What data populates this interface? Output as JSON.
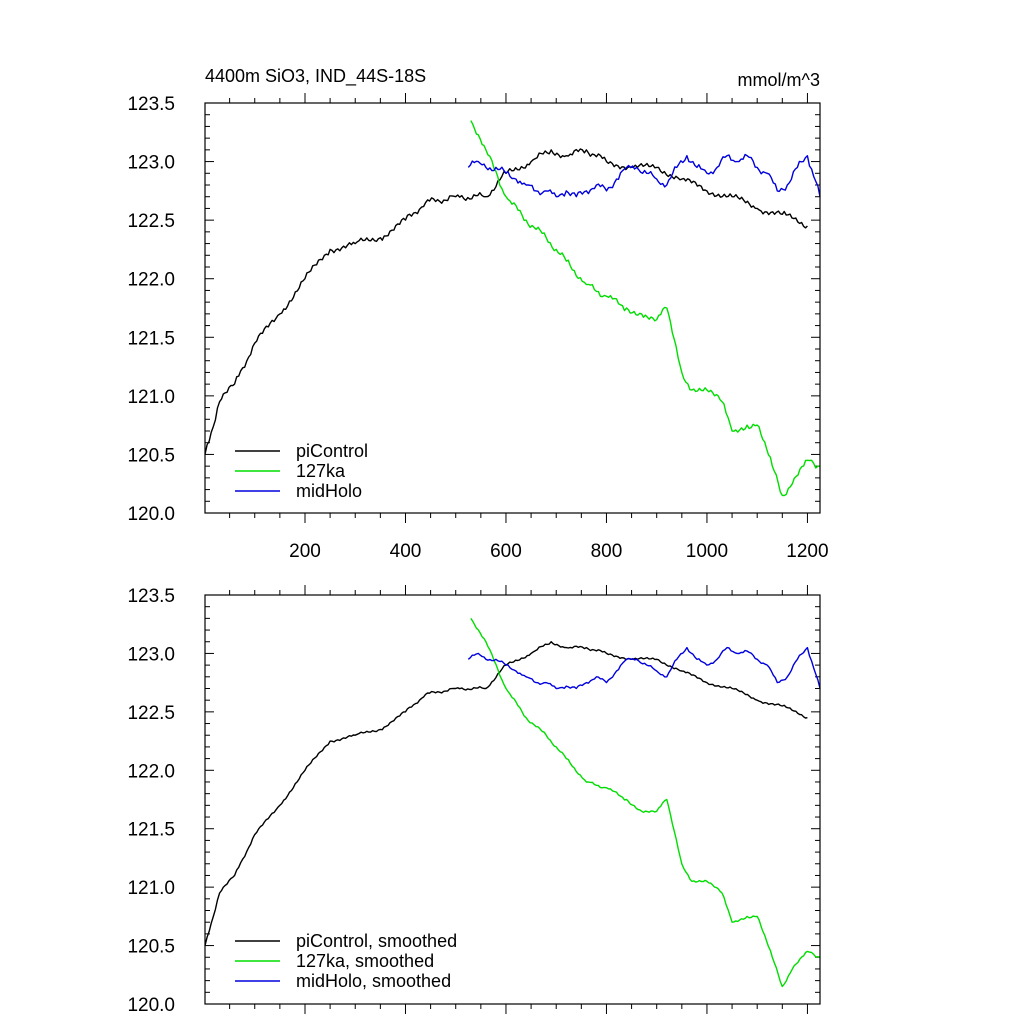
{
  "chart_data": [
    {
      "type": "line",
      "title_left": "4400m SiO3, IND_44S-18S",
      "title_right": "mmol/m^3",
      "xlabel": "",
      "ylabel": "",
      "xlim": [
        1,
        1225
      ],
      "ylim": [
        120.0,
        123.5
      ],
      "xticks": [
        200,
        400,
        600,
        800,
        1000,
        1200
      ],
      "xtick_labels": [
        "200",
        "400",
        "600",
        "800",
        "1000",
        "1200"
      ],
      "show_xtick_labels": true,
      "yticks": [
        120.0,
        120.5,
        121.0,
        121.5,
        122.0,
        122.5,
        123.0,
        123.5
      ],
      "ytick_labels": [
        "120.0",
        "120.5",
        "121.0",
        "121.5",
        "122.0",
        "122.5",
        "123.0",
        "123.5"
      ],
      "legend_position": "bottom-left",
      "series": [
        {
          "name": "piControl",
          "color": "#000000",
          "x": [
            1,
            30,
            60,
            100,
            150,
            200,
            250,
            300,
            350,
            400,
            440,
            500,
            560,
            600,
            650,
            690,
            720,
            760,
            800,
            850,
            900,
            950,
            1000,
            1050,
            1100,
            1150,
            1200
          ],
          "y": [
            120.5,
            120.95,
            121.1,
            121.45,
            121.7,
            122.0,
            122.25,
            122.3,
            122.35,
            122.5,
            122.65,
            122.7,
            122.7,
            122.9,
            123.0,
            123.1,
            123.05,
            123.1,
            123.0,
            122.95,
            122.95,
            122.85,
            122.75,
            122.7,
            122.6,
            122.55,
            122.45
          ]
        },
        {
          "name": "127ka",
          "color": "#00dd00",
          "x": [
            530,
            560,
            600,
            640,
            680,
            720,
            760,
            800,
            840,
            870,
            900,
            920,
            950,
            970,
            1000,
            1030,
            1050,
            1080,
            1100,
            1130,
            1150,
            1170,
            1200,
            1225
          ],
          "y": [
            123.35,
            123.1,
            122.7,
            122.5,
            122.35,
            122.15,
            121.95,
            121.85,
            121.75,
            121.7,
            121.65,
            121.75,
            121.2,
            121.05,
            121.05,
            120.95,
            120.7,
            120.75,
            120.75,
            120.4,
            120.15,
            120.25,
            120.45,
            120.4
          ]
        },
        {
          "name": "midHolo",
          "color": "#0000dd",
          "x": [
            525,
            545,
            560,
            580,
            600,
            620,
            640,
            660,
            680,
            700,
            720,
            740,
            760,
            780,
            800,
            820,
            840,
            860,
            880,
            900,
            920,
            940,
            960,
            980,
            1000,
            1020,
            1040,
            1060,
            1080,
            1100,
            1120,
            1140,
            1160,
            1180,
            1200,
            1225
          ],
          "y": [
            122.95,
            123.0,
            122.95,
            122.95,
            122.9,
            122.85,
            122.8,
            122.75,
            122.75,
            122.7,
            122.75,
            122.7,
            122.75,
            122.8,
            122.75,
            122.85,
            122.95,
            122.95,
            122.9,
            122.85,
            122.8,
            122.95,
            123.05,
            122.95,
            122.9,
            122.95,
            123.05,
            123.0,
            123.05,
            122.95,
            122.9,
            122.75,
            122.8,
            122.95,
            123.05,
            122.7
          ]
        }
      ]
    },
    {
      "type": "line",
      "title_left": "",
      "title_right": "",
      "xlabel": "",
      "ylabel": "",
      "xlim": [
        1,
        1225
      ],
      "ylim": [
        120.0,
        123.5
      ],
      "xticks": [
        200,
        400,
        600,
        800,
        1000,
        1200
      ],
      "xtick_labels": [],
      "show_xtick_labels": false,
      "yticks": [
        120.0,
        120.5,
        121.0,
        121.5,
        122.0,
        122.5,
        123.0,
        123.5
      ],
      "ytick_labels": [
        "120.0",
        "120.5",
        "121.0",
        "121.5",
        "122.0",
        "122.5",
        "123.0",
        "123.5"
      ],
      "legend_position": "bottom-left",
      "series": [
        {
          "name": "piControl, smoothed",
          "color": "#000000",
          "x": [
            1,
            30,
            60,
            100,
            150,
            200,
            250,
            300,
            350,
            400,
            440,
            500,
            560,
            600,
            650,
            690,
            720,
            760,
            800,
            850,
            900,
            950,
            1000,
            1050,
            1100,
            1150,
            1200
          ],
          "y": [
            120.5,
            120.95,
            121.1,
            121.45,
            121.7,
            122.0,
            122.25,
            122.3,
            122.35,
            122.5,
            122.65,
            122.7,
            122.7,
            122.9,
            123.0,
            123.1,
            123.05,
            123.05,
            123.0,
            122.95,
            122.95,
            122.85,
            122.75,
            122.7,
            122.6,
            122.55,
            122.45
          ]
        },
        {
          "name": "127ka, smoothed",
          "color": "#00dd00",
          "x": [
            530,
            560,
            600,
            640,
            680,
            720,
            760,
            800,
            840,
            870,
            900,
            920,
            950,
            970,
            1000,
            1030,
            1050,
            1080,
            1100,
            1130,
            1150,
            1170,
            1200,
            1225
          ],
          "y": [
            123.3,
            123.1,
            122.7,
            122.45,
            122.3,
            122.1,
            121.9,
            121.85,
            121.75,
            121.65,
            121.65,
            121.75,
            121.2,
            121.05,
            121.05,
            120.95,
            120.7,
            120.75,
            120.75,
            120.4,
            120.15,
            120.3,
            120.45,
            120.4
          ]
        },
        {
          "name": "midHolo, smoothed",
          "color": "#0000dd",
          "x": [
            525,
            545,
            560,
            580,
            600,
            620,
            640,
            660,
            680,
            700,
            720,
            740,
            760,
            780,
            800,
            820,
            840,
            860,
            880,
            900,
            920,
            940,
            960,
            980,
            1000,
            1020,
            1040,
            1060,
            1080,
            1100,
            1120,
            1140,
            1160,
            1180,
            1200,
            1225
          ],
          "y": [
            122.95,
            123.0,
            122.95,
            122.95,
            122.9,
            122.85,
            122.8,
            122.75,
            122.75,
            122.7,
            122.72,
            122.7,
            122.75,
            122.8,
            122.75,
            122.85,
            122.95,
            122.95,
            122.9,
            122.85,
            122.8,
            122.95,
            123.05,
            122.95,
            122.9,
            122.95,
            123.05,
            123.0,
            123.02,
            122.95,
            122.9,
            122.75,
            122.8,
            122.95,
            123.05,
            122.7
          ]
        }
      ]
    }
  ]
}
